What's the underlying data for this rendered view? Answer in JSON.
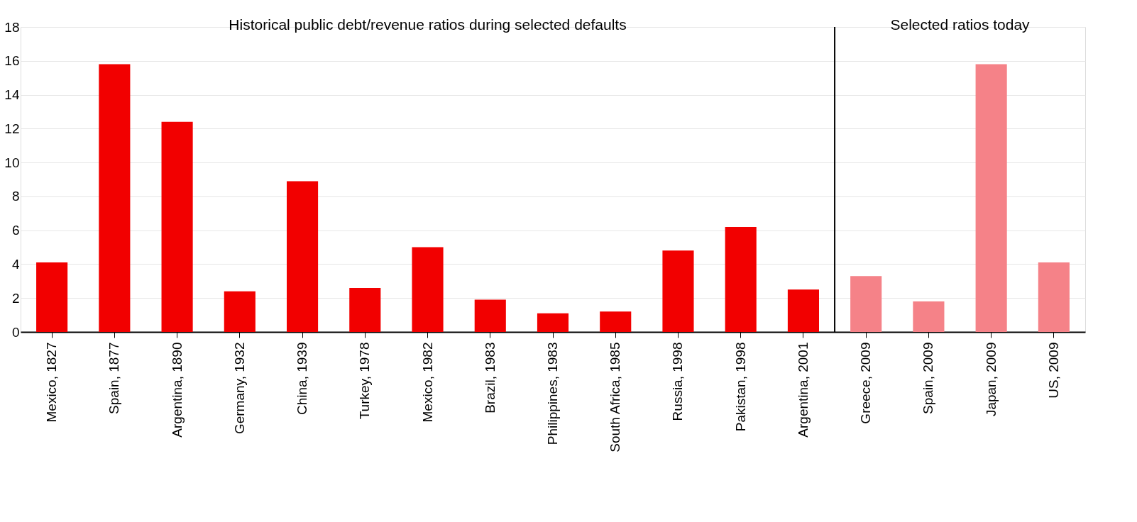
{
  "chart_data": {
    "type": "bar",
    "categories": [
      "Mexico, 1827",
      "Spain, 1877",
      "Argentina, 1890",
      "Germany, 1932",
      "China, 1939",
      "Turkey, 1978",
      "Mexico, 1982",
      "Brazil, 1983",
      "Philippines, 1983",
      "South Africa, 1985",
      "Russia, 1998",
      "Pakistan, 1998",
      "Argentina, 2001",
      "Greece, 2009",
      "Spain, 2009",
      "Japan, 2009",
      "US, 2009"
    ],
    "values": [
      4.1,
      15.8,
      12.4,
      2.4,
      8.9,
      2.6,
      5.0,
      1.9,
      1.1,
      1.2,
      4.8,
      6.2,
      2.5,
      3.3,
      1.8,
      15.8,
      4.1
    ],
    "colors": [
      "#f20000",
      "#f20000",
      "#f20000",
      "#f20000",
      "#f20000",
      "#f20000",
      "#f20000",
      "#f20000",
      "#f20000",
      "#f20000",
      "#f20000",
      "#f20000",
      "#f20000",
      "#f58288",
      "#f58288",
      "#f58288",
      "#f58288"
    ],
    "ylim": [
      0,
      18
    ],
    "yticks": [
      0,
      2,
      4,
      6,
      8,
      10,
      12,
      14,
      16,
      18
    ],
    "grid": "y",
    "annotations": [
      "Historical public debt/revenue ratios during selected defaults",
      "Selected ratios today"
    ],
    "ref_lines": [
      {
        "axis": "x",
        "value": "Greece, 2009",
        "color": "#000000"
      }
    ]
  }
}
